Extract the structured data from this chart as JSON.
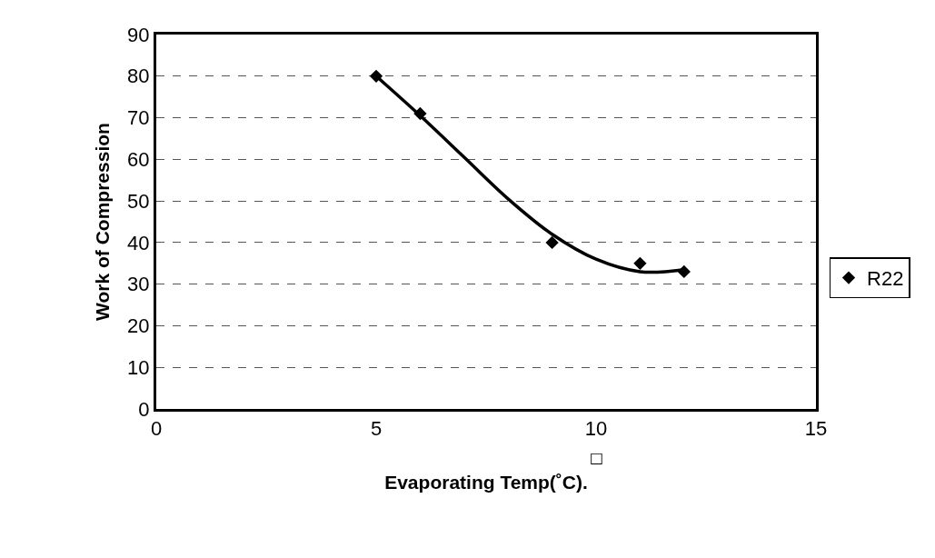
{
  "chart_data": {
    "type": "scatter",
    "xlabel": "Evaporating Temp(˚C).",
    "ylabel": "Work of Compression",
    "annotations": [
      "□"
    ],
    "series": [
      {
        "name": "R22",
        "color": "#000000",
        "marker": "diamond",
        "x": [
          5,
          6,
          9,
          11,
          12
        ],
        "values": [
          80,
          71,
          40,
          35,
          33
        ]
      },
      {
        "type": "line",
        "color": "#000000",
        "marker": "none",
        "line_style": "solid",
        "x": [
          5,
          6,
          7,
          8,
          9,
          10,
          11,
          12
        ],
        "values": [
          80,
          70.5,
          60.5,
          50.5,
          42,
          36,
          33,
          33.5
        ]
      }
    ],
    "xlim": [
      0,
      15
    ],
    "xticks": [
      0,
      5,
      10,
      15
    ],
    "ylim": [
      0,
      90
    ],
    "yticks": [
      0,
      10,
      20,
      30,
      40,
      50,
      60,
      70,
      80,
      90
    ],
    "grid": "y",
    "legend": "right"
  }
}
